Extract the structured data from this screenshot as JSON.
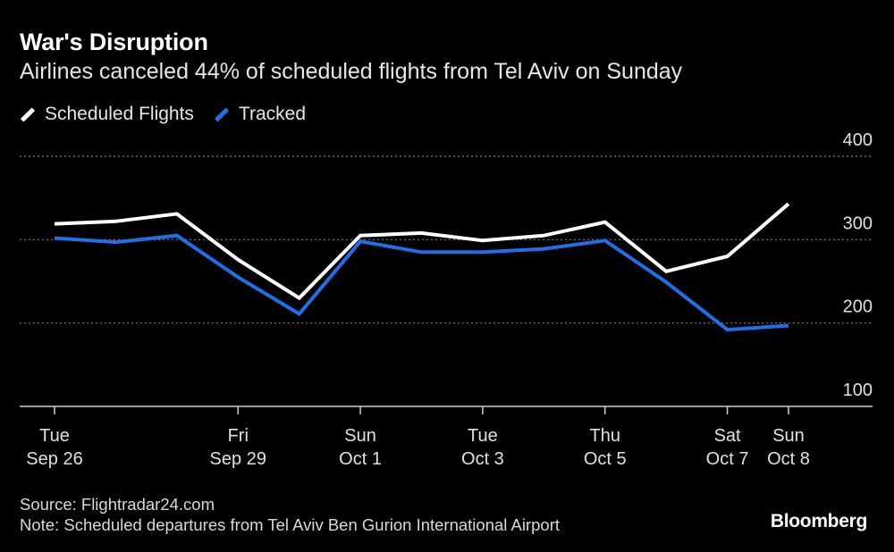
{
  "chart_data": {
    "type": "line",
    "title": "War's Disruption",
    "subtitle": "Airlines canceled 44% of scheduled flights from Tel Aviv on Sunday",
    "x": [
      "Sep 26",
      "Sep 27",
      "Sep 28",
      "Sep 29",
      "Sep 30",
      "Oct 1",
      "Oct 2",
      "Oct 3",
      "Oct 4",
      "Oct 5",
      "Oct 6",
      "Oct 7",
      "Oct 8"
    ],
    "x_ticks": [
      {
        "x": "Sep 26",
        "line1": "Tue",
        "line2": "Sep 26"
      },
      {
        "x": "Sep 29",
        "line1": "Fri",
        "line2": "Sep 29"
      },
      {
        "x": "Oct 1",
        "line1": "Sun",
        "line2": "Oct 1"
      },
      {
        "x": "Oct 3",
        "line1": "Tue",
        "line2": "Oct 3"
      },
      {
        "x": "Oct 5",
        "line1": "Thu",
        "line2": "Oct 5"
      },
      {
        "x": "Oct 7",
        "line1": "Sat",
        "line2": "Oct 7"
      },
      {
        "x": "Oct 8",
        "line1": "Sun",
        "line2": "Oct 8"
      }
    ],
    "series": [
      {
        "name": "Scheduled Flights",
        "color": "#ffffff",
        "values": [
          319,
          322,
          331,
          276,
          230,
          305,
          308,
          299,
          305,
          321,
          262,
          280,
          343
        ]
      },
      {
        "name": "Tracked",
        "color": "#1f6fe8",
        "values": [
          302,
          297,
          305,
          255,
          211,
          298,
          285,
          285,
          289,
          299,
          249,
          192,
          197
        ]
      }
    ],
    "ylim": [
      100,
      400
    ],
    "yticks": [
      100,
      200,
      300,
      400
    ],
    "grid": true,
    "legend_position": "top-left"
  },
  "footer": {
    "source": "Source: Flightradar24.com",
    "note": "Note: Scheduled departures from Tel Aviv Ben Gurion International Airport",
    "brand": "Bloomberg"
  }
}
